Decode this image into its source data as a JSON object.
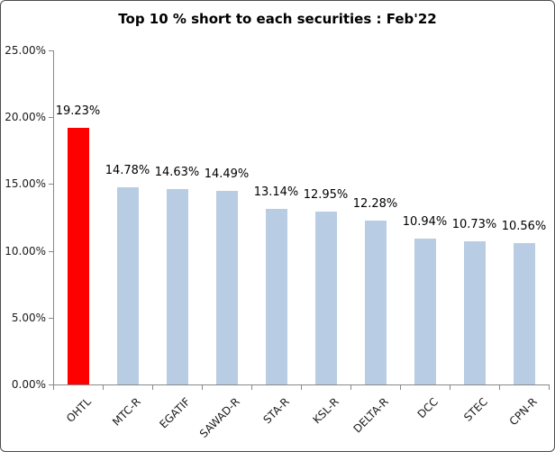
{
  "chart_data": {
    "type": "bar",
    "title": "Top 10 % short to each securities : Feb'22",
    "categories": [
      "OHTL",
      "MTC-R",
      "EGATIF",
      "SAWAD-R",
      "STA-R",
      "KSL-R",
      "DELTA-R",
      "DCC",
      "STEC",
      "CPN-R"
    ],
    "values": [
      19.23,
      14.78,
      14.63,
      14.49,
      13.14,
      12.95,
      12.28,
      10.94,
      10.73,
      10.56
    ],
    "data_labels": [
      "19.23%",
      "14.78%",
      "14.63%",
      "14.49%",
      "13.14%",
      "12.95%",
      "12.28%",
      "10.94%",
      "10.73%",
      "10.56%"
    ],
    "y_tick_labels": [
      "0.00%",
      "5.00%",
      "10.00%",
      "15.00%",
      "20.00%",
      "25.00%"
    ],
    "ylim": [
      0,
      25
    ],
    "y_tick_step": 5,
    "grid": false,
    "legend": "none",
    "colors": {
      "bar_default": "#B8CCE4",
      "bar_highlight": "#FF0000",
      "highlight_index": 0,
      "axis": "#898989",
      "text": "#000000"
    }
  }
}
